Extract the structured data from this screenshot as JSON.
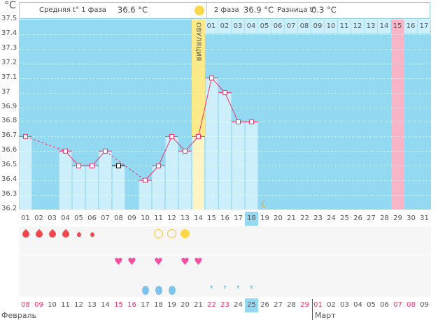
{
  "unit": "°C",
  "header": {
    "phase1_label": "Средняя t° 1 фаза",
    "phase1_value": "36.6 °C",
    "phase2_label": "2 фаза",
    "phase2_value": "36.9 °C",
    "diff_label": "Разница t°",
    "diff_value": "0.3 °C"
  },
  "ovulation_label": "ОВУЛЯЦИЯ",
  "colors": {
    "plot_bg": "#93d9f2",
    "bar": "#cdeefb",
    "line": "#f0336a",
    "ovulation": "#fbe98a",
    "menstruation_forecast": "#f9b5c8",
    "weekend": "#f0336a"
  },
  "chart_data": {
    "type": "line",
    "ylim": [
      36.2,
      37.5
    ],
    "yticks": [
      "37.5",
      "37.4",
      "37.3",
      "37.2",
      "37.1",
      "37",
      "36.9",
      "36.8",
      "36.7",
      "36.6",
      "36.5",
      "36.4",
      "36.3",
      "36.2"
    ],
    "cycle_days": [
      "01",
      "02",
      "03",
      "04",
      "05",
      "06",
      "07",
      "08",
      "09",
      "10",
      "11",
      "12",
      "13",
      "14",
      "15",
      "16",
      "17",
      "18",
      "19",
      "20",
      "21",
      "22",
      "23",
      "24",
      "25",
      "26",
      "27",
      "28",
      "29",
      "30",
      "31"
    ],
    "temperatures": [
      36.7,
      null,
      null,
      36.6,
      36.5,
      36.5,
      36.6,
      36.5,
      null,
      36.4,
      36.5,
      36.7,
      36.6,
      36.7,
      37.1,
      37.0,
      36.8,
      36.8,
      null,
      null,
      null,
      null,
      null,
      null,
      null,
      null,
      null,
      null,
      null,
      null,
      null
    ],
    "excluded_days": [
      8
    ],
    "ovulation_day": 14,
    "today_day": 18,
    "forecast_period_day": 29
  },
  "next_cycle_days": [
    "01",
    "02",
    "03",
    "04",
    "05",
    "06",
    "07",
    "08",
    "09",
    "10",
    "11",
    "12",
    "13",
    "14",
    "15",
    "16",
    "17"
  ],
  "dates": [
    "08",
    "09",
    "10",
    "11",
    "12",
    "13",
    "14",
    "15",
    "16",
    "17",
    "18",
    "19",
    "20",
    "21",
    "22",
    "23",
    "24",
    "25",
    "26",
    "27",
    "28",
    "29",
    "01",
    "02",
    "03",
    "04",
    "05",
    "06",
    "07",
    "08",
    "09"
  ],
  "weekend_indices": [
    0,
    1,
    7,
    8,
    14,
    15,
    21,
    22,
    28,
    29
  ],
  "months": {
    "feb": "Февраль",
    "mar": "Март"
  },
  "markers": {
    "bleeding_heavy": [
      1,
      2,
      3,
      4
    ],
    "bleeding_light": [
      5,
      6
    ],
    "test_negative": [
      11,
      12
    ],
    "test_positive": [
      13
    ],
    "intercourse": [
      8,
      9,
      11,
      13,
      14
    ],
    "mucus_egg": [
      10,
      11,
      12
    ],
    "mucus_watery": [
      15,
      16,
      17,
      18
    ],
    "moon": [
      19
    ]
  }
}
